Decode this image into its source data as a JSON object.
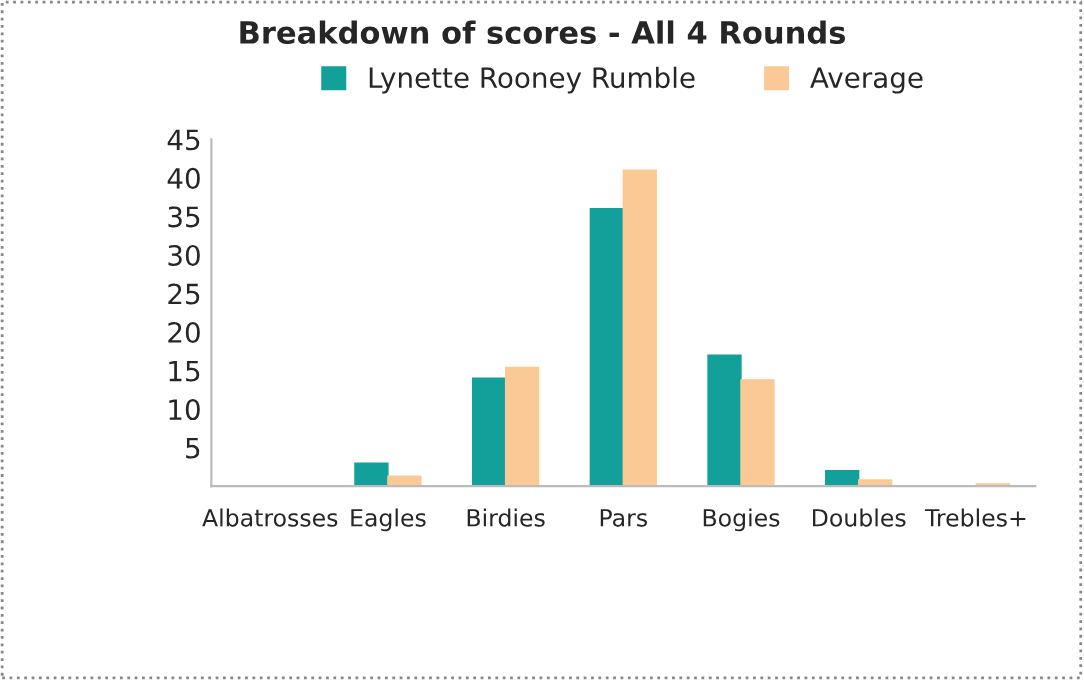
{
  "chart_data": {
    "type": "bar",
    "title": "Breakdown of scores - All 4 Rounds",
    "categories": [
      "Albatrosses",
      "Eagles",
      "Birdies",
      "Pars",
      "Bogies",
      "Doubles",
      "Trebles+"
    ],
    "series": [
      {
        "name": "Lynette Rooney Rumble",
        "color": "#14a09a",
        "values": [
          0,
          3,
          14,
          36,
          17,
          2,
          0
        ]
      },
      {
        "name": "Average",
        "color": "#fbc995",
        "values": [
          0,
          1.3,
          15.4,
          41,
          13.8,
          0.8,
          0.3
        ]
      }
    ],
    "ylim": [
      0,
      45
    ],
    "yticks": [
      5,
      10,
      15,
      20,
      25,
      30,
      35,
      40,
      45
    ],
    "grid": false,
    "legend": "top"
  }
}
